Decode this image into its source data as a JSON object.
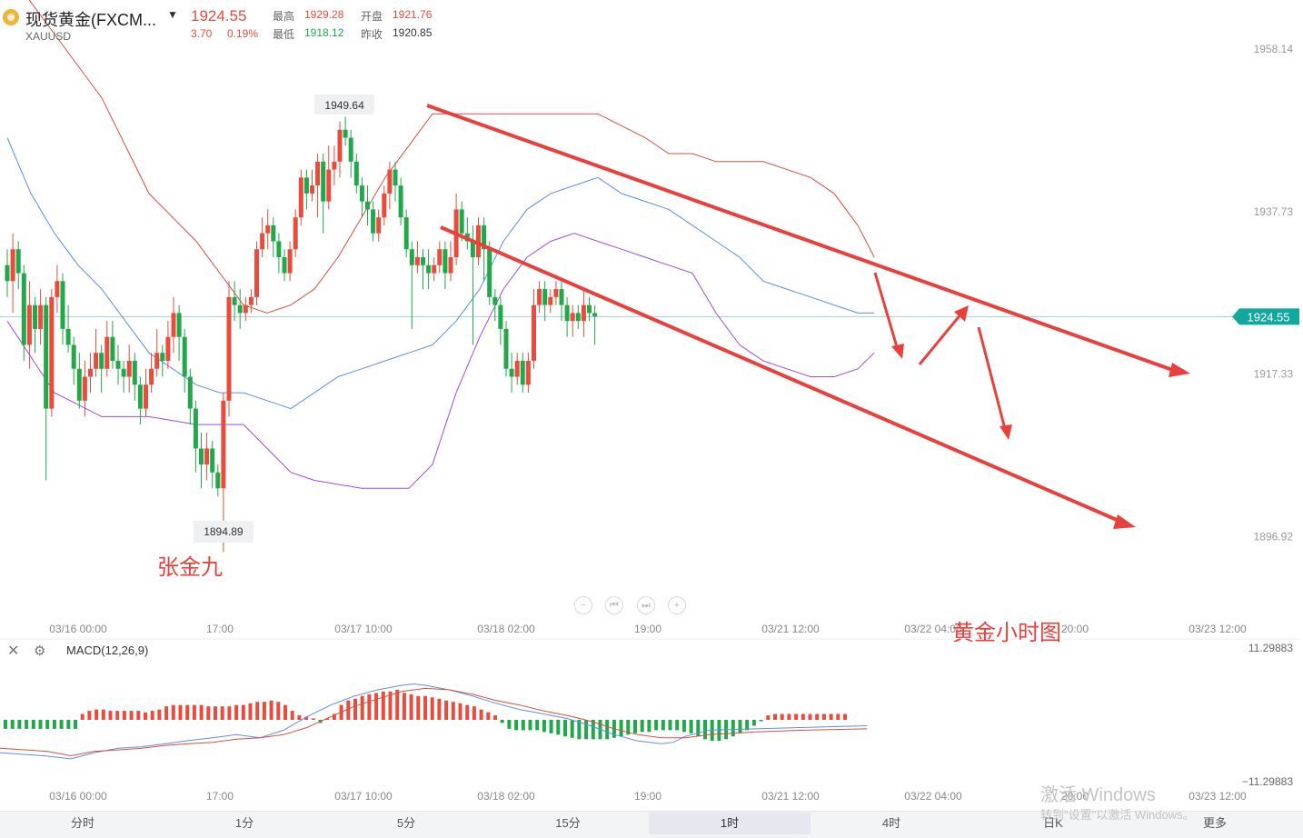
{
  "header": {
    "symbol_name": "现货黄金(FXCM...",
    "symbol_code": "XAUUSD",
    "last_price": "1924.55",
    "change": "3.70",
    "change_pct": "0.19%",
    "high_label": "最高",
    "high_value": "1929.28",
    "open_label": "开盘",
    "open_value": "1921.76",
    "low_label": "最低",
    "low_value": "1918.12",
    "prevclose_label": "昨收",
    "prevclose_value": "1920.85"
  },
  "colors": {
    "up": "#e74c3c",
    "down": "#22a84a",
    "annotation": "#e8413d",
    "mid_band": "#5b8fe6",
    "upper_band": "#d9503f",
    "lower_band": "#9b4de0",
    "dif": "#5b8fe6",
    "dea": "#d9503f"
  },
  "icons": {
    "symbol": "gold-coin-icon",
    "dropdown": "caret-down-icon",
    "close": "close-icon",
    "settings": "gear-icon",
    "zoom_out": "zoom-out-icon",
    "prev": "step-back-icon",
    "next": "step-forward-icon",
    "zoom_in": "zoom-in-icon"
  },
  "annotations": {
    "author": "张金九",
    "title": "黄金小时图"
  },
  "macd": {
    "title": "MACD(12,26,9)",
    "axis_labels": [
      "11.29883",
      "−11.29883"
    ]
  },
  "timeframes": [
    {
      "label": "分时",
      "active": false
    },
    {
      "label": "1分",
      "active": false
    },
    {
      "label": "5分",
      "active": false
    },
    {
      "label": "15分",
      "active": false
    },
    {
      "label": "1时",
      "active": true
    },
    {
      "label": "4时",
      "active": false
    },
    {
      "label": "日K",
      "active": false
    },
    {
      "label": "更多",
      "active": false
    }
  ],
  "watermark": {
    "line1": "激活 Windows",
    "line2": "转到\"设置\"以激活 Windows。"
  },
  "chart_data": {
    "type": "candlestick",
    "ylim": [
      1889,
      1962
    ],
    "y_ticks": [
      1958.14,
      1937.73,
      1917.33,
      1896.92
    ],
    "y_tick_labels": [
      "1958.14",
      "1937.73",
      "1917.33",
      "1896.92"
    ],
    "current_price": 1924.55,
    "current_price_label": "1924.55",
    "high_marker": 1949.64,
    "high_marker_label": "1949.64",
    "low_marker": 1894.89,
    "low_marker_label": "1894.89",
    "x_labels": [
      "03/16 00:00",
      "17:00",
      "03/17 10:00",
      "03/18 02:00",
      "19:00",
      "03/21 12:00",
      "03/22 04:00",
      "20:00",
      "03/23 12:00"
    ],
    "bollinger_mid": [
      [
        0,
        1947
      ],
      [
        10,
        1940
      ],
      [
        20,
        1935
      ],
      [
        30,
        1931
      ],
      [
        40,
        1928
      ],
      [
        50,
        1924
      ],
      [
        60,
        1920
      ],
      [
        70,
        1918
      ],
      [
        80,
        1916
      ],
      [
        90,
        1915
      ],
      [
        100,
        1915
      ],
      [
        110,
        1914
      ],
      [
        120,
        1913
      ],
      [
        130,
        1915
      ],
      [
        140,
        1917
      ],
      [
        150,
        1918
      ],
      [
        160,
        1919
      ],
      [
        170,
        1920
      ],
      [
        180,
        1921
      ],
      [
        190,
        1924
      ],
      [
        200,
        1928
      ],
      [
        210,
        1934
      ],
      [
        220,
        1938
      ],
      [
        230,
        1940
      ],
      [
        240,
        1941
      ],
      [
        250,
        1942
      ],
      [
        260,
        1940
      ],
      [
        270,
        1939
      ],
      [
        280,
        1938
      ],
      [
        290,
        1936
      ],
      [
        300,
        1934
      ],
      [
        310,
        1932
      ],
      [
        320,
        1929
      ],
      [
        330,
        1928
      ],
      [
        340,
        1927
      ],
      [
        350,
        1926
      ],
      [
        360,
        1925
      ],
      [
        367,
        1925
      ]
    ],
    "bollinger_upper": [
      [
        0,
        1968
      ],
      [
        20,
        1960
      ],
      [
        40,
        1952
      ],
      [
        60,
        1940
      ],
      [
        80,
        1934
      ],
      [
        100,
        1926
      ],
      [
        110,
        1925
      ],
      [
        120,
        1926
      ],
      [
        130,
        1928
      ],
      [
        140,
        1932
      ],
      [
        150,
        1937
      ],
      [
        160,
        1942
      ],
      [
        170,
        1946
      ],
      [
        180,
        1950
      ],
      [
        190,
        1950
      ],
      [
        200,
        1950
      ],
      [
        210,
        1950
      ],
      [
        230,
        1950
      ],
      [
        250,
        1950
      ],
      [
        270,
        1947
      ],
      [
        280,
        1945
      ],
      [
        290,
        1945
      ],
      [
        300,
        1944
      ],
      [
        320,
        1944
      ],
      [
        340,
        1942
      ],
      [
        350,
        1940
      ],
      [
        360,
        1936
      ],
      [
        367,
        1932
      ]
    ],
    "bollinger_lower": [
      [
        0,
        1924
      ],
      [
        20,
        1915
      ],
      [
        40,
        1912
      ],
      [
        60,
        1912
      ],
      [
        80,
        1911
      ],
      [
        100,
        1911
      ],
      [
        110,
        1908
      ],
      [
        120,
        1905
      ],
      [
        130,
        1904
      ],
      [
        150,
        1903
      ],
      [
        170,
        1903
      ],
      [
        180,
        1906
      ],
      [
        190,
        1915
      ],
      [
        200,
        1922
      ],
      [
        210,
        1928
      ],
      [
        220,
        1932
      ],
      [
        230,
        1934
      ],
      [
        240,
        1935
      ],
      [
        250,
        1934
      ],
      [
        260,
        1933
      ],
      [
        270,
        1932
      ],
      [
        280,
        1931
      ],
      [
        290,
        1930
      ],
      [
        300,
        1925
      ],
      [
        310,
        1921
      ],
      [
        320,
        1919
      ],
      [
        330,
        1918
      ],
      [
        340,
        1917
      ],
      [
        350,
        1917
      ],
      [
        360,
        1918
      ],
      [
        367,
        1920
      ]
    ],
    "candles": [
      [
        1931,
        1929,
        1933,
        1927
      ],
      [
        1929,
        1933,
        1935,
        1925
      ],
      [
        1933,
        1930,
        1934,
        1928
      ],
      [
        1930,
        1921,
        1931,
        1919
      ],
      [
        1921,
        1926,
        1929,
        1918
      ],
      [
        1926,
        1923,
        1927,
        1920
      ],
      [
        1923,
        1926,
        1928,
        1921
      ],
      [
        1926,
        1913,
        1927,
        1904
      ],
      [
        1913,
        1927,
        1928,
        1912
      ],
      [
        1927,
        1929,
        1931,
        1925
      ],
      [
        1929,
        1923,
        1930,
        1921
      ],
      [
        1923,
        1921,
        1926,
        1920
      ],
      [
        1921,
        1918,
        1922,
        1916
      ],
      [
        1918,
        1914,
        1920,
        1913
      ],
      [
        1914,
        1917,
        1919,
        1912
      ],
      [
        1917,
        1918,
        1920,
        1915
      ],
      [
        1918,
        1920,
        1923,
        1917
      ],
      [
        1920,
        1918,
        1921,
        1915
      ],
      [
        1918,
        1922,
        1924,
        1917
      ],
      [
        1922,
        1919,
        1924,
        1918
      ],
      [
        1919,
        1918,
        1921,
        1916
      ],
      [
        1918,
        1917,
        1919,
        1915
      ],
      [
        1917,
        1919,
        1921,
        1915
      ],
      [
        1919,
        1916,
        1920,
        1914
      ],
      [
        1916,
        1913,
        1917,
        1911
      ],
      [
        1913,
        1916,
        1918,
        1912
      ],
      [
        1916,
        1918,
        1920,
        1915
      ],
      [
        1918,
        1920,
        1923,
        1917
      ],
      [
        1920,
        1919,
        1921,
        1917
      ],
      [
        1919,
        1922,
        1924,
        1918
      ],
      [
        1922,
        1925,
        1927,
        1920
      ],
      [
        1925,
        1922,
        1926,
        1919
      ],
      [
        1922,
        1917,
        1923,
        1915
      ],
      [
        1917,
        1913,
        1918,
        1911
      ],
      [
        1913,
        1908,
        1914,
        1905
      ],
      [
        1908,
        1906,
        1910,
        1903
      ],
      [
        1906,
        1908,
        1910,
        1904
      ],
      [
        1908,
        1905,
        1909,
        1903
      ],
      [
        1905,
        1903,
        1906,
        1902
      ],
      [
        1903,
        1914,
        1915,
        1895
      ],
      [
        1914,
        1927,
        1929,
        1912
      ],
      [
        1927,
        1926,
        1929,
        1924
      ],
      [
        1926,
        1925,
        1928,
        1923
      ],
      [
        1925,
        1926,
        1927,
        1924
      ],
      [
        1926,
        1927,
        1928,
        1925
      ],
      [
        1927,
        1933,
        1934,
        1926
      ],
      [
        1933,
        1935,
        1937,
        1932
      ],
      [
        1935,
        1936,
        1938,
        1933
      ],
      [
        1936,
        1934,
        1937,
        1932
      ],
      [
        1934,
        1932,
        1935,
        1930
      ],
      [
        1932,
        1930,
        1933,
        1929
      ],
      [
        1930,
        1933,
        1934,
        1929
      ],
      [
        1933,
        1937,
        1938,
        1932
      ],
      [
        1937,
        1942,
        1943,
        1936
      ],
      [
        1942,
        1940,
        1943,
        1938
      ],
      [
        1940,
        1941,
        1943,
        1939
      ],
      [
        1941,
        1944,
        1945,
        1937
      ],
      [
        1944,
        1939,
        1945,
        1935
      ],
      [
        1939,
        1943,
        1946,
        1938
      ],
      [
        1943,
        1944,
        1946,
        1941
      ],
      [
        1944,
        1948,
        1949,
        1942
      ],
      [
        1948,
        1947,
        1949.64,
        1946
      ],
      [
        1947,
        1944,
        1948,
        1942
      ],
      [
        1944,
        1941,
        1945,
        1940
      ],
      [
        1941,
        1939,
        1942,
        1937
      ],
      [
        1939,
        1938,
        1941,
        1936
      ],
      [
        1938,
        1935,
        1939,
        1934
      ],
      [
        1935,
        1937,
        1938,
        1934
      ],
      [
        1937,
        1940,
        1941,
        1936
      ],
      [
        1940,
        1943,
        1944,
        1938
      ],
      [
        1943,
        1941,
        1944,
        1939
      ],
      [
        1941,
        1937,
        1942,
        1936
      ],
      [
        1937,
        1933,
        1938,
        1932
      ],
      [
        1933,
        1931,
        1934,
        1923
      ],
      [
        1931,
        1932,
        1934,
        1930
      ],
      [
        1932,
        1931,
        1933,
        1928
      ],
      [
        1931,
        1930,
        1933,
        1928
      ],
      [
        1930,
        1931,
        1932,
        1929
      ],
      [
        1931,
        1933,
        1934,
        1930
      ],
      [
        1933,
        1930,
        1934,
        1928
      ],
      [
        1930,
        1932,
        1934,
        1929
      ],
      [
        1932,
        1938,
        1940,
        1931
      ],
      [
        1938,
        1935,
        1939,
        1934
      ],
      [
        1935,
        1934,
        1937,
        1933
      ],
      [
        1934,
        1932,
        1936,
        1921
      ],
      [
        1932,
        1936,
        1937,
        1931
      ],
      [
        1936,
        1933,
        1937,
        1929
      ],
      [
        1933,
        1927,
        1934,
        1926
      ],
      [
        1927,
        1926,
        1928,
        1924
      ],
      [
        1926,
        1923,
        1927,
        1921
      ],
      [
        1923,
        1918,
        1924,
        1917
      ],
      [
        1918,
        1917,
        1920,
        1915
      ],
      [
        1917,
        1919,
        1920,
        1916
      ],
      [
        1919,
        1916,
        1920,
        1915
      ],
      [
        1916,
        1919,
        1920,
        1915
      ],
      [
        1919,
        1926,
        1928,
        1918
      ],
      [
        1926,
        1928,
        1929,
        1925
      ],
      [
        1928,
        1926,
        1929,
        1924
      ],
      [
        1926,
        1927,
        1928,
        1925
      ],
      [
        1927,
        1928,
        1929,
        1926
      ],
      [
        1928,
        1926,
        1929,
        1924
      ],
      [
        1926,
        1924,
        1927,
        1922
      ],
      [
        1924,
        1925,
        1926,
        1922
      ],
      [
        1925,
        1924,
        1926,
        1923
      ],
      [
        1924,
        1926,
        1928,
        1922
      ],
      [
        1926,
        1925,
        1927,
        1924
      ],
      [
        1925,
        1924.55,
        1926,
        1921
      ]
    ],
    "macd_hist": [
      -2.6,
      -2.6,
      -2.6,
      -2.6,
      -2.6,
      -2.6,
      -2.6,
      -2.6,
      -2.6,
      -2.6,
      -2.6,
      1.7,
      2.6,
      3.0,
      3.0,
      2.6,
      2.6,
      2.6,
      2.6,
      2.6,
      2.1,
      2.6,
      3.0,
      3.9,
      4.3,
      4.3,
      4.3,
      4.3,
      4.3,
      3.9,
      3.9,
      3.9,
      3.9,
      4.3,
      4.3,
      4.8,
      5.2,
      5.2,
      5.6,
      5.2,
      4.3,
      2.6,
      1.3,
      0.9,
      0.4,
      -0.9,
      0.4,
      1.7,
      4.3,
      5.6,
      6.1,
      6.9,
      7.4,
      7.8,
      8.2,
      8.2,
      8.7,
      7.8,
      7.4,
      6.9,
      6.9,
      6.5,
      6.1,
      5.6,
      5.2,
      4.8,
      4.3,
      3.9,
      3.0,
      2.2,
      1.3,
      -0.9,
      -2.6,
      -3.0,
      -3.0,
      -3.0,
      -3.0,
      -3.5,
      -3.9,
      -4.3,
      -4.8,
      -5.2,
      -5.6,
      -5.6,
      -5.6,
      -5.6,
      -5.6,
      -5.2,
      -4.8,
      -4.3,
      -3.9,
      -3.5,
      -3.5,
      -3.0,
      -3.0,
      -3.0,
      -3.0,
      -3.5,
      -3.9,
      -4.8,
      -5.6,
      -6.1,
      -6.1,
      -5.6,
      -4.8,
      -3.9,
      -3.0,
      -1.7,
      -0.4,
      1.3,
      1.7,
      1.7,
      1.7,
      1.7,
      1.7,
      1.7,
      1.7,
      1.7,
      1.7,
      1.7,
      1.7
    ],
    "macd_dif": [
      [
        0,
        -9.5
      ],
      [
        20,
        -10.5
      ],
      [
        30,
        -11.3
      ],
      [
        40,
        -9.5
      ],
      [
        50,
        -8.2
      ],
      [
        60,
        -7.8
      ],
      [
        70,
        -6.9
      ],
      [
        80,
        -6.0
      ],
      [
        90,
        -5.2
      ],
      [
        100,
        -4.3
      ],
      [
        110,
        -5.2
      ],
      [
        120,
        -3.0
      ],
      [
        130,
        0.9
      ],
      [
        140,
        4.3
      ],
      [
        150,
        6.9
      ],
      [
        160,
        8.7
      ],
      [
        170,
        10.0
      ],
      [
        175,
        10.4
      ],
      [
        180,
        10.0
      ],
      [
        190,
        8.7
      ],
      [
        200,
        6.9
      ],
      [
        210,
        4.8
      ],
      [
        220,
        3.0
      ],
      [
        230,
        1.7
      ],
      [
        240,
        0.4
      ],
      [
        250,
        -1.7
      ],
      [
        260,
        -4.3
      ],
      [
        270,
        -6.1
      ],
      [
        280,
        -6.9
      ],
      [
        285,
        -6.5
      ],
      [
        290,
        -4.8
      ],
      [
        300,
        -3.0
      ],
      [
        320,
        -2.6
      ],
      [
        340,
        -2.2
      ],
      [
        367,
        -1.7
      ]
    ],
    "macd_dea": [
      [
        0,
        -8.2
      ],
      [
        20,
        -9.1
      ],
      [
        30,
        -10.4
      ],
      [
        40,
        -9.1
      ],
      [
        50,
        -8.7
      ],
      [
        60,
        -8.2
      ],
      [
        70,
        -7.4
      ],
      [
        80,
        -6.9
      ],
      [
        90,
        -6.5
      ],
      [
        100,
        -5.6
      ],
      [
        110,
        -5.2
      ],
      [
        120,
        -4.3
      ],
      [
        130,
        -2.2
      ],
      [
        140,
        0.9
      ],
      [
        150,
        3.9
      ],
      [
        160,
        6.1
      ],
      [
        170,
        8.2
      ],
      [
        180,
        9.1
      ],
      [
        190,
        8.7
      ],
      [
        200,
        7.4
      ],
      [
        210,
        5.6
      ],
      [
        220,
        4.3
      ],
      [
        230,
        2.6
      ],
      [
        240,
        1.3
      ],
      [
        250,
        -0.4
      ],
      [
        260,
        -2.6
      ],
      [
        270,
        -4.3
      ],
      [
        280,
        -5.2
      ],
      [
        290,
        -5.2
      ],
      [
        300,
        -4.3
      ],
      [
        320,
        -3.5
      ],
      [
        340,
        -3.0
      ],
      [
        367,
        -2.6
      ]
    ]
  }
}
